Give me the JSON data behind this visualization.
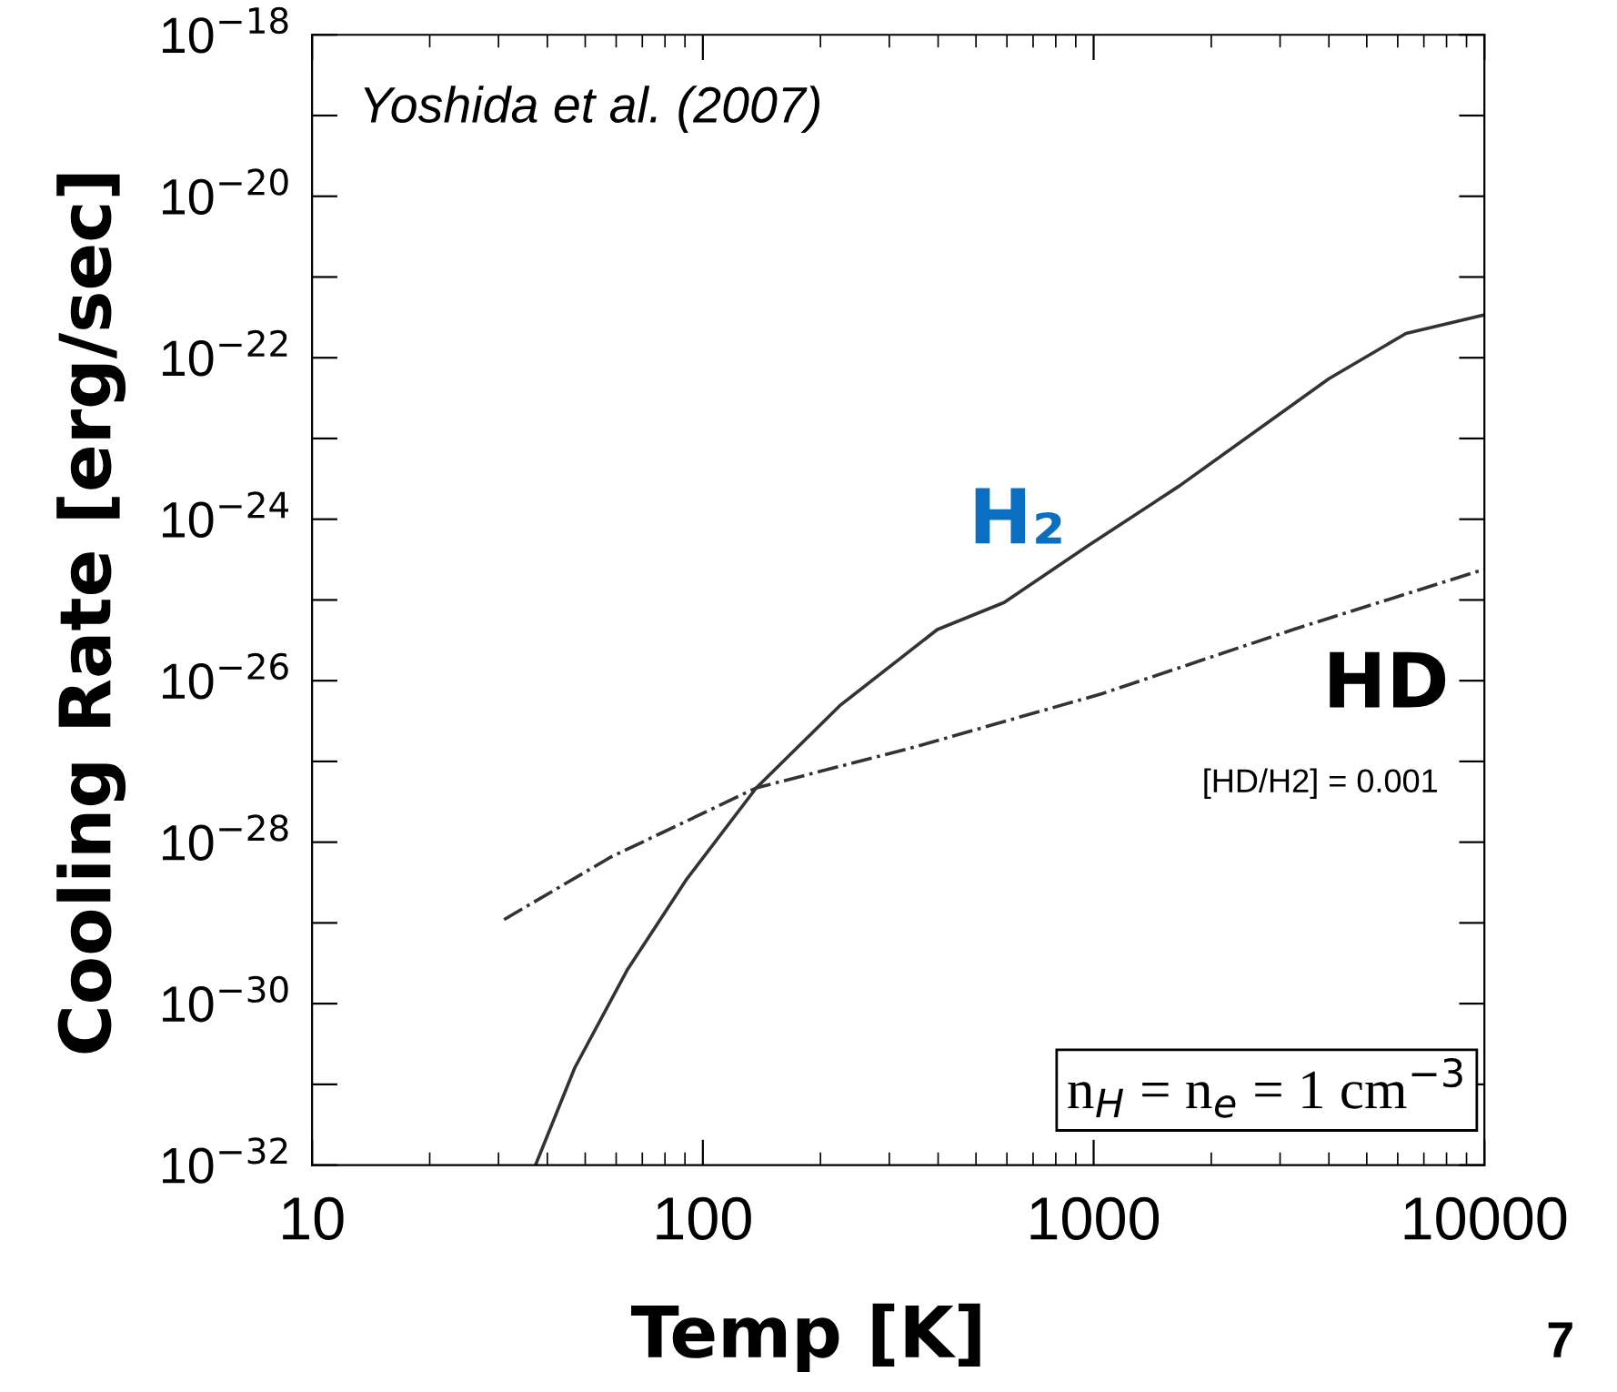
{
  "chart_data": {
    "type": "line",
    "xlabel": "Temp [K]",
    "ylabel": "Cooling Rate [erg/sec]",
    "log": "xy",
    "xlim": [
      10,
      10000
    ],
    "xticks": [
      10,
      100,
      1000,
      10000
    ],
    "ylim": [
      1e-32,
      1e-18
    ],
    "yticks": [
      {
        "value": 1e-32,
        "label": "10$^{−32}$"
      },
      {
        "value": 1e-31,
        "label": null
      },
      {
        "value": 1e-30,
        "label": "10$^{−30}$"
      },
      {
        "value": 1e-29,
        "label": null
      },
      {
        "value": 1e-28,
        "label": "10$^{−28}$"
      },
      {
        "value": 1e-27,
        "label": null
      },
      {
        "value": 1e-26,
        "label": "10$^{−26}$"
      },
      {
        "value": 1e-25,
        "label": null
      },
      {
        "value": 1e-24,
        "label": "10$^{−24}$"
      },
      {
        "value": 1e-23,
        "label": null
      },
      {
        "value": 1e-22,
        "label": "10$^{−22}$"
      },
      {
        "value": 1e-21,
        "label": null
      },
      {
        "value": 1e-20,
        "label": "10$^{−20}$"
      },
      {
        "value": 1e-19,
        "label": null
      },
      {
        "value": 1e-18,
        "label": "10$^{−18}$"
      }
    ],
    "grid": false,
    "legend": false,
    "marker": "none",
    "series": [
      {
        "name": "H₂",
        "color": "#333333",
        "line_style": "solid",
        "x": [
          37.3,
          47,
          64,
          91,
          137,
          224,
          398,
          590,
          968,
          1660,
          4000,
          6300,
          10000
        ],
        "values": [
          1e-32,
          1.6e-31,
          2.6e-30,
          3.5e-29,
          4.7e-28,
          4.9e-27,
          4.3e-26,
          9.3e-26,
          4.7e-25,
          2.6e-24,
          5.5e-23,
          2e-22,
          3.4e-22
        ]
      },
      {
        "name": "HD",
        "color": "#333333",
        "line_style": "dashdot",
        "x": [
          31,
          58,
          137,
          347,
          1050,
          3240,
          10000
        ],
        "values": [
          1.1e-29,
          6.5e-29,
          4.7e-28,
          1.5e-27,
          6.9e-27,
          4.3e-26,
          2.4e-25
        ]
      }
    ],
    "annotations": [
      "Yoshida et al. (2007)",
      "[HD/H2] = 0.001",
      "n$_{H}$ = n$_{e}$ = 1 cm$^{−3}$",
      "7"
    ]
  }
}
